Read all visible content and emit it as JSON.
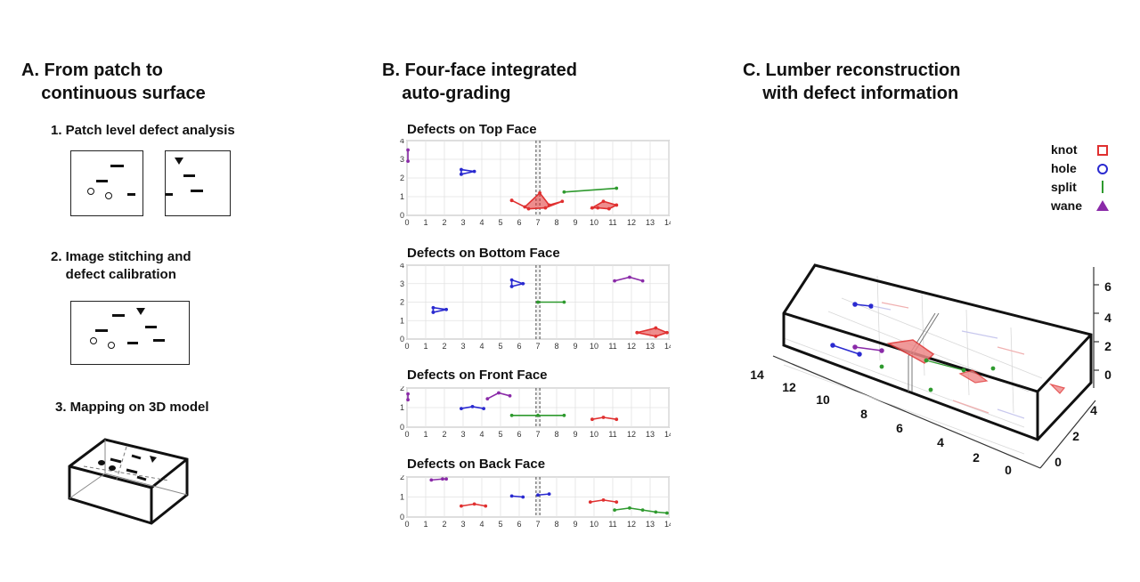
{
  "panelA": {
    "title": "A. From patch to\n    continuous surface",
    "step1": "1. Patch level defect analysis",
    "step2": "2. Image stitching and\n    defect calibration",
    "step3": "3. Mapping on 3D model"
  },
  "panelB": {
    "title": "B. Four-face integrated\n    auto-grading",
    "face_titles": [
      "Defects on Top Face",
      "Defects on Bottom Face",
      "Defects on Front Face",
      "Defects on Back Face"
    ]
  },
  "panelC": {
    "title": "C. Lumber reconstruction\n    with defect information",
    "legend": [
      {
        "label": "knot",
        "color": "#e03030",
        "marker": "square"
      },
      {
        "label": "hole",
        "color": "#2a2ad0",
        "marker": "circle"
      },
      {
        "label": "split",
        "color": "#2e9a2e",
        "marker": "line"
      },
      {
        "label": "wane",
        "color": "#8a2aa8",
        "marker": "triangle"
      }
    ],
    "axis_left_ticks": [
      "0",
      "2",
      "4",
      "6",
      "8",
      "10",
      "12",
      "14"
    ],
    "axis_right_ticks": [
      "0",
      "2",
      "4"
    ],
    "axis_z_ticks": [
      "0",
      "2",
      "4",
      "6"
    ]
  },
  "chart_data": [
    {
      "type": "scatter",
      "title": "Defects on Top Face",
      "xlim": [
        0,
        14
      ],
      "ylim": [
        0,
        4
      ],
      "x_ticks": [
        "0",
        "1",
        "2",
        "3",
        "4",
        "5",
        "6",
        "7",
        "8",
        "9",
        "10",
        "11",
        "12",
        "13",
        "14"
      ],
      "y_ticks": [
        "0",
        "1",
        "2",
        "3",
        "4"
      ],
      "series": [
        {
          "type": "wane",
          "color": "#8a2aa8",
          "shapes": [
            [
              [
                0.05,
                2.9
              ],
              [
                0.05,
                3.5
              ]
            ]
          ]
        },
        {
          "type": "hole",
          "color": "#2a2ad0",
          "shapes": [
            [
              [
                2.9,
                2.2
              ],
              [
                2.9,
                2.45
              ],
              [
                3.6,
                2.35
              ],
              [
                2.9,
                2.2
              ]
            ]
          ]
        },
        {
          "type": "knot",
          "color": "#e03030",
          "fill": true,
          "shapes": [
            [
              [
                5.6,
                0.8
              ],
              [
                6.3,
                0.45
              ],
              [
                7.1,
                1.2
              ],
              [
                7.6,
                0.55
              ],
              [
                8.3,
                0.75
              ],
              [
                7.4,
                0.4
              ],
              [
                6.5,
                0.35
              ],
              [
                5.6,
                0.8
              ]
            ],
            [
              [
                9.9,
                0.4
              ],
              [
                10.5,
                0.75
              ],
              [
                11.2,
                0.55
              ],
              [
                10.8,
                0.35
              ],
              [
                10.2,
                0.4
              ],
              [
                9.9,
                0.4
              ]
            ]
          ]
        },
        {
          "type": "split",
          "color": "#2e9a2e",
          "shapes": [
            [
              [
                8.4,
                1.25
              ],
              [
                11.2,
                1.45
              ]
            ]
          ]
        }
      ]
    },
    {
      "type": "scatter",
      "title": "Defects on Bottom Face",
      "xlim": [
        0,
        14
      ],
      "ylim": [
        0,
        4
      ],
      "x_ticks": [
        "0",
        "1",
        "2",
        "3",
        "4",
        "5",
        "6",
        "7",
        "8",
        "9",
        "10",
        "11",
        "12",
        "13",
        "14"
      ],
      "y_ticks": [
        "0",
        "1",
        "2",
        "3",
        "4"
      ],
      "series": [
        {
          "type": "hole",
          "color": "#2a2ad0",
          "shapes": [
            [
              [
                1.4,
                1.45
              ],
              [
                1.4,
                1.7
              ],
              [
                2.1,
                1.6
              ],
              [
                1.4,
                1.45
              ]
            ],
            [
              [
                5.6,
                2.85
              ],
              [
                5.6,
                3.2
              ],
              [
                6.2,
                3.0
              ],
              [
                5.6,
                2.85
              ]
            ]
          ]
        },
        {
          "type": "split",
          "color": "#2e9a2e",
          "shapes": [
            [
              [
                7.0,
                2.0
              ],
              [
                8.4,
                2.0
              ]
            ]
          ]
        },
        {
          "type": "wane",
          "color": "#8a2aa8",
          "shapes": [
            [
              [
                11.1,
                3.15
              ],
              [
                11.9,
                3.35
              ],
              [
                12.6,
                3.15
              ]
            ]
          ]
        },
        {
          "type": "knot",
          "color": "#e03030",
          "fill": true,
          "shapes": [
            [
              [
                12.3,
                0.35
              ],
              [
                13.3,
                0.6
              ],
              [
                13.9,
                0.35
              ],
              [
                13.3,
                0.15
              ],
              [
                12.3,
                0.35
              ]
            ]
          ]
        }
      ]
    },
    {
      "type": "scatter",
      "title": "Defects on Front Face",
      "xlim": [
        0,
        14
      ],
      "ylim": [
        0,
        2
      ],
      "x_ticks": [
        "0",
        "1",
        "2",
        "3",
        "4",
        "5",
        "6",
        "7",
        "8",
        "9",
        "10",
        "11",
        "12",
        "13",
        "14"
      ],
      "y_ticks": [
        "0",
        "1",
        "2"
      ],
      "series": [
        {
          "type": "wane",
          "color": "#8a2aa8",
          "shapes": [
            [
              [
                0.05,
                1.4
              ],
              [
                0.05,
                1.7
              ]
            ],
            [
              [
                4.3,
                1.45
              ],
              [
                4.9,
                1.75
              ],
              [
                5.5,
                1.6
              ]
            ]
          ]
        },
        {
          "type": "hole",
          "color": "#2a2ad0",
          "shapes": [
            [
              [
                2.9,
                0.95
              ],
              [
                3.5,
                1.05
              ],
              [
                4.1,
                0.95
              ]
            ]
          ]
        },
        {
          "type": "split",
          "color": "#2e9a2e",
          "shapes": [
            [
              [
                5.6,
                0.6
              ],
              [
                7.0,
                0.6
              ],
              [
                8.4,
                0.6
              ]
            ]
          ]
        },
        {
          "type": "knot",
          "color": "#e03030",
          "shapes": [
            [
              [
                9.9,
                0.4
              ],
              [
                10.5,
                0.5
              ],
              [
                11.2,
                0.4
              ]
            ]
          ]
        }
      ]
    },
    {
      "type": "scatter",
      "title": "Defects on Back Face",
      "xlim": [
        0,
        14
      ],
      "ylim": [
        0,
        2
      ],
      "x_ticks": [
        "0",
        "1",
        "2",
        "3",
        "4",
        "5",
        "6",
        "7",
        "8",
        "9",
        "10",
        "11",
        "12",
        "13",
        "14"
      ],
      "y_ticks": [
        "0",
        "1",
        "2"
      ],
      "series": [
        {
          "type": "wane",
          "color": "#8a2aa8",
          "shapes": [
            [
              [
                1.3,
                1.85
              ],
              [
                1.9,
                1.9
              ],
              [
                2.1,
                1.9
              ]
            ]
          ]
        },
        {
          "type": "knot",
          "color": "#e03030",
          "shapes": [
            [
              [
                2.9,
                0.55
              ],
              [
                3.6,
                0.65
              ],
              [
                4.2,
                0.55
              ]
            ],
            [
              [
                9.8,
                0.75
              ],
              [
                10.5,
                0.85
              ],
              [
                11.2,
                0.75
              ]
            ]
          ]
        },
        {
          "type": "hole",
          "color": "#2a2ad0",
          "shapes": [
            [
              [
                5.6,
                1.05
              ],
              [
                6.2,
                1.0
              ]
            ],
            [
              [
                7.0,
                1.1
              ],
              [
                7.6,
                1.15
              ]
            ]
          ]
        },
        {
          "type": "split",
          "color": "#2e9a2e",
          "shapes": [
            [
              [
                11.1,
                0.35
              ],
              [
                11.9,
                0.45
              ],
              [
                12.6,
                0.35
              ],
              [
                13.3,
                0.25
              ],
              [
                13.9,
                0.2
              ]
            ]
          ]
        }
      ]
    }
  ]
}
